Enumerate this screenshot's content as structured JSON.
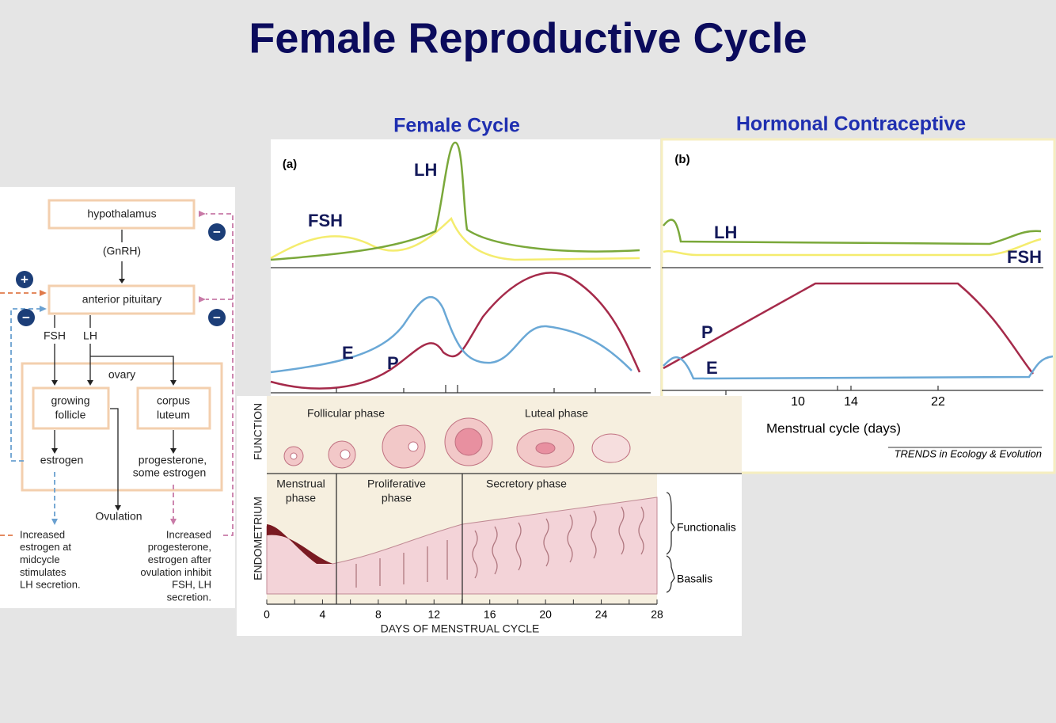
{
  "title": "Female Reproductive Cycle",
  "flowchart": {
    "hypothalamus": "hypothalamus",
    "gnrh": "(GnRH)",
    "pituitary": "anterior pituitary",
    "fsh": "FSH",
    "lh": "LH",
    "ovary": "ovary",
    "follicle": [
      "growing",
      "follicle"
    ],
    "luteum": [
      "corpus",
      "luteum"
    ],
    "estrogen": "estrogen",
    "progesterone": [
      "progesterone,",
      "some estrogen"
    ],
    "ovulation": "Ovulation",
    "note_left": [
      "Increased",
      "estrogen at",
      "midcycle",
      "stimulates",
      "LH secretion."
    ],
    "note_right": [
      "Increased",
      "progesterone,",
      "estrogen after",
      "ovulation inhibit",
      "FSH, LH",
      "secretion."
    ],
    "signs": [
      "−",
      "+",
      "−",
      "−"
    ]
  },
  "female_cycle": {
    "heading": "Female Cycle",
    "panel": "(a)",
    "lh": "LH",
    "fsh": "FSH",
    "e": "E",
    "p": "P"
  },
  "contraceptive": {
    "heading": "Hormonal Contraceptive",
    "panel": "(b)",
    "lh": "LH",
    "fsh": "FSH",
    "p": "P",
    "e": "E",
    "ticks": [
      "10",
      "14",
      "22"
    ],
    "xlabel": "Menstrual cycle (days)",
    "credit": "TRENDS in Ecology & Evolution"
  },
  "endometrium": {
    "side_top": "FUNCTION",
    "side_bottom": "ENDOMETRIUM",
    "follicular": "Follicular phase",
    "luteal": "Luteal phase",
    "menstrual": [
      "Menstrual",
      "phase"
    ],
    "proliferative": [
      "Proliferative",
      "phase"
    ],
    "secretory": "Secretory phase",
    "functionalis": "Functionalis",
    "basalis": "Basalis",
    "ticks": [
      "0",
      "4",
      "8",
      "12",
      "16",
      "20",
      "24",
      "28"
    ],
    "xlabel": "DAYS OF MENSTRUAL CYCLE"
  }
}
